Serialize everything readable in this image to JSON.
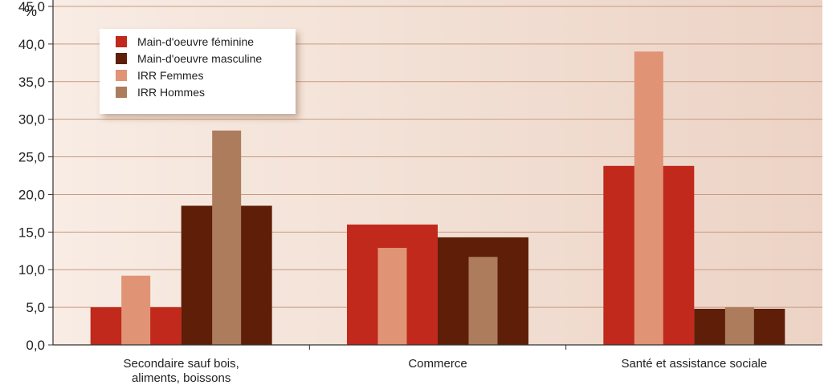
{
  "chart_data": {
    "type": "bar",
    "y_unit": "%",
    "ylim": [
      0,
      45
    ],
    "y_ticks": [
      "0,0",
      "5,0",
      "10,0",
      "15,0",
      "20,0",
      "25,0",
      "30,0",
      "35,0",
      "40,0",
      "45,0"
    ],
    "categories": [
      [
        "Secondaire sauf bois,",
        "aliments, boissons"
      ],
      [
        "Commerce"
      ],
      [
        "Santé et assistance sociale"
      ]
    ],
    "series": [
      {
        "name": "Main-d'oeuvre féminine",
        "values": [
          5.0,
          16.0,
          23.8
        ],
        "color": "#c0291b",
        "kind": "wide"
      },
      {
        "name": "Main-d'oeuvre masculine",
        "values": [
          18.5,
          14.3,
          4.8
        ],
        "color": "#5e1e07",
        "kind": "wide"
      },
      {
        "name": "IRR Femmes",
        "values": [
          9.2,
          12.9,
          39.0
        ],
        "color": "#e09375",
        "kind": "narrow"
      },
      {
        "name": "IRR Hommes",
        "values": [
          28.5,
          11.7,
          5.0
        ],
        "color": "#ac7c5d",
        "kind": "narrow"
      }
    ],
    "legend_position": "top-left",
    "grid": true,
    "background": "#f1ddd3",
    "grid_color": "#c99a82"
  }
}
